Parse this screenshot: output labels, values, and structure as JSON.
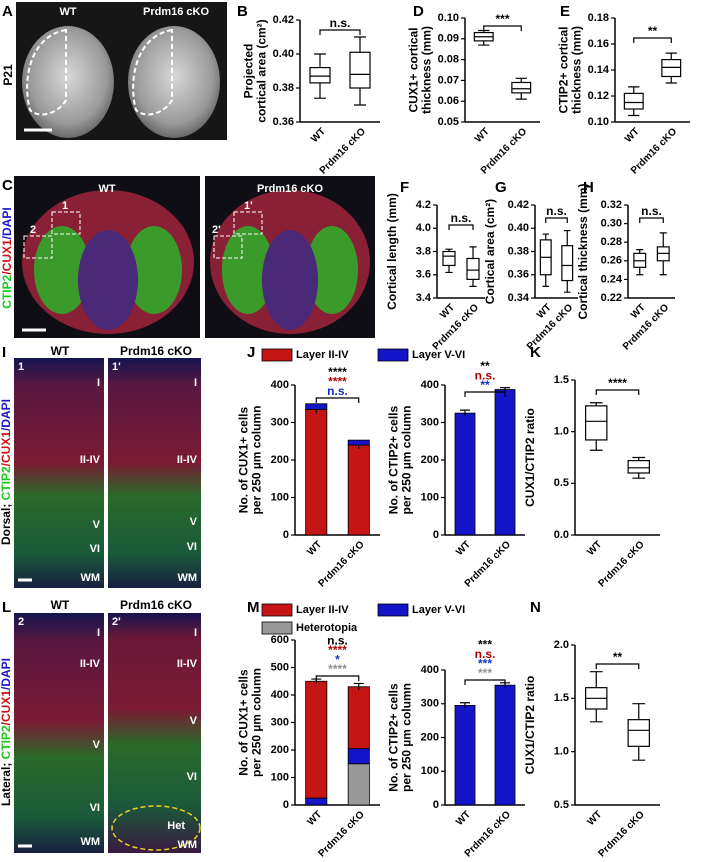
{
  "figure_panels": [
    {
      "label": "A",
      "titles": [
        "WT",
        "Prdm16 cKO"
      ],
      "side": "P21"
    },
    {
      "label": "C",
      "titles": [
        "WT",
        "Prdm16 cKO"
      ],
      "stain": [
        "CTIP2",
        "/CUX1",
        "/DAPI"
      ],
      "regions": [
        "1",
        "2",
        "1'",
        "2'"
      ]
    },
    {
      "label": "I",
      "titles": [
        "WT",
        "Prdm16 cKO"
      ],
      "region": "Dorsal; ",
      "stain": [
        "CTIP2",
        "/CUX1",
        "/DAPI"
      ],
      "columns": [
        {
          "id": "1",
          "layers": [
            "I",
            "II-IV",
            "V",
            "VI",
            "WM"
          ]
        },
        {
          "id": "1'",
          "layers": [
            "I",
            "II-IV",
            "V",
            "VI",
            "WM"
          ]
        }
      ]
    },
    {
      "label": "L",
      "titles": [
        "WT",
        "Prdm16 cKO"
      ],
      "region": "Lateral; ",
      "stain": [
        "CTIP2",
        "/CUX1",
        "/DAPI"
      ],
      "columns": [
        {
          "id": "2",
          "layers": [
            "I",
            "II-IV",
            "V",
            "VI",
            "WM"
          ]
        },
        {
          "id": "2'",
          "layers": [
            "I",
            "II-IV",
            "V",
            "VI",
            "Het",
            "WM"
          ]
        }
      ]
    }
  ],
  "chart_data": [
    {
      "type": "box",
      "label": "B",
      "ylabel": [
        "Projected",
        "cortical area (cm²)"
      ],
      "categories": [
        "WT",
        "Prdm16 cKO"
      ],
      "values": [
        {
          "min": 0.374,
          "q1": 0.383,
          "median": 0.387,
          "q3": 0.392,
          "max": 0.4
        },
        {
          "min": 0.37,
          "q1": 0.38,
          "median": 0.388,
          "q3": 0.401,
          "max": 0.41
        }
      ],
      "ylim": [
        0.36,
        0.42
      ],
      "yticks": [
        0.36,
        0.38,
        {
          "value": 0.4,
          "label": "0.40"
        },
        0.42
      ],
      "annotations": [
        {
          "text": "n.s.",
          "color": "#000000"
        }
      ]
    },
    {
      "type": "box",
      "label": "D",
      "ylabel": [
        "CUX1+ cortical",
        "thickness (mm)"
      ],
      "categories": [
        "WT",
        "Prdm16 cKO"
      ],
      "values": [
        {
          "min": 0.087,
          "q1": 0.089,
          "median": 0.091,
          "q3": 0.093,
          "max": 0.094
        },
        {
          "min": 0.061,
          "q1": 0.064,
          "median": 0.066,
          "q3": 0.069,
          "max": 0.071
        }
      ],
      "ylim": [
        0.05,
        0.1
      ],
      "yticks": [
        0.05,
        0.06,
        0.07,
        0.08,
        0.09,
        {
          "value": 0.1,
          "label": "0.10"
        }
      ],
      "annotations": [
        {
          "text": "***",
          "color": "#000000"
        }
      ]
    },
    {
      "type": "box",
      "label": "E",
      "ylabel": [
        "CTIP2+ cortical",
        "thickness (mm)"
      ],
      "categories": [
        "WT",
        "Prdm16 cKO"
      ],
      "values": [
        {
          "min": 0.105,
          "q1": 0.11,
          "median": 0.115,
          "q3": 0.122,
          "max": 0.127
        },
        {
          "min": 0.13,
          "q1": 0.135,
          "median": 0.142,
          "q3": 0.148,
          "max": 0.153
        }
      ],
      "ylim": [
        0.1,
        0.18
      ],
      "yticks": [
        {
          "value": 0.1,
          "label": "0.10"
        },
        0.12,
        0.14,
        0.16,
        0.18
      ],
      "annotations": [
        {
          "text": "**",
          "color": "#000000"
        }
      ]
    },
    {
      "type": "box",
      "label": "F",
      "ylabel": [
        "Cortical length (mm)"
      ],
      "categories": [
        "WT",
        "Prdm16 cKO"
      ],
      "values": [
        {
          "min": 3.62,
          "q1": 3.68,
          "median": 3.76,
          "q3": 3.8,
          "max": 3.82
        },
        {
          "min": 3.5,
          "q1": 3.56,
          "median": 3.64,
          "q3": 3.74,
          "max": 3.84
        }
      ],
      "ylim": [
        3.4,
        4.2
      ],
      "yticks": [
        3.4,
        3.6,
        3.8,
        {
          "value": 4,
          "label": "4.0"
        },
        4.2
      ],
      "annotations": [
        {
          "text": "n.s.",
          "color": "#000000"
        }
      ]
    },
    {
      "type": "box",
      "label": "G",
      "ylabel": [
        "Cortical area (cm²)"
      ],
      "categories": [
        "WT",
        "Prdm16 cKO"
      ],
      "values": [
        {
          "min": 0.35,
          "q1": 0.36,
          "median": 0.375,
          "q3": 0.39,
          "max": 0.395
        },
        {
          "min": 0.345,
          "q1": 0.355,
          "median": 0.368,
          "q3": 0.385,
          "max": 0.398
        }
      ],
      "ylim": [
        0.34,
        0.42
      ],
      "yticks": [
        0.34,
        0.36,
        0.38,
        {
          "value": 0.4,
          "label": "0.40"
        },
        0.42
      ],
      "annotations": [
        {
          "text": "n.s.",
          "color": "#000000"
        }
      ]
    },
    {
      "type": "box",
      "label": "H",
      "ylabel": [
        "Cortical thickness (mm)"
      ],
      "categories": [
        "WT",
        "Prdm16 cKO"
      ],
      "values": [
        {
          "min": 0.245,
          "q1": 0.253,
          "median": 0.26,
          "q3": 0.268,
          "max": 0.272
        },
        {
          "min": 0.245,
          "q1": 0.26,
          "median": 0.268,
          "q3": 0.275,
          "max": 0.29
        }
      ],
      "ylim": [
        0.22,
        0.32
      ],
      "yticks": [
        0.22,
        0.24,
        0.26,
        0.28,
        {
          "value": 0.3,
          "label": "0.30"
        },
        0.32
      ],
      "annotations": [
        {
          "text": "n.s.",
          "color": "#000000"
        }
      ]
    },
    {
      "type": "bar",
      "label": "J",
      "ylabel": [
        "No. of CUX1+ cells",
        "per 250 µm column"
      ],
      "categories": [
        "WT",
        "Prdm16 cKO"
      ],
      "series": [
        {
          "name": "Layer II-IV",
          "color": "#c41414",
          "values": [
            335,
            240
          ],
          "errors": [
            10,
            10
          ]
        },
        {
          "name": "Layer V-VI",
          "color": "#1414c8",
          "values": [
            15,
            13
          ]
        }
      ],
      "ylim": [
        0,
        400
      ],
      "yticks": [
        0,
        100,
        200,
        300,
        400
      ],
      "annotations": [
        {
          "text": "****",
          "color": "#000000"
        },
        {
          "text": "****",
          "color": "#b00000"
        },
        {
          "text": "n.s.",
          "color": "#1030c0"
        }
      ]
    },
    {
      "type": "bar",
      "ylabel": [
        "No. of CTIP2+ cells",
        "per 250 µm column"
      ],
      "categories": [
        "WT",
        "Prdm16 cKO"
      ],
      "series": [
        {
          "color": "#1414c8",
          "values": [
            325,
            388
          ],
          "errors": [
            8,
            5
          ]
        }
      ],
      "ylim": [
        0,
        400
      ],
      "yticks": [
        0,
        100,
        200,
        300,
        400
      ],
      "annotations": [
        {
          "text": "**",
          "color": "#000000"
        },
        {
          "text": "n.s.",
          "color": "#b00000"
        },
        {
          "text": "**",
          "color": "#1030c0"
        }
      ]
    },
    {
      "type": "box",
      "label": "K",
      "ylabel": [
        "CUX1/CTIP2 ratio"
      ],
      "categories": [
        "WT",
        "Prdm16 cKO"
      ],
      "values": [
        {
          "min": 0.82,
          "q1": 0.92,
          "median": 1.1,
          "q3": 1.25,
          "max": 1.28
        },
        {
          "min": 0.55,
          "q1": 0.6,
          "median": 0.65,
          "q3": 0.72,
          "max": 0.75
        }
      ],
      "ylim": [
        0,
        1.5
      ],
      "yticks": [
        {
          "value": 0,
          "label": "0.0"
        },
        0.5,
        {
          "value": 1,
          "label": "1.0"
        },
        1.5
      ],
      "annotations": [
        {
          "text": "****",
          "color": "#000000"
        }
      ]
    },
    {
      "type": "bar",
      "label": "M",
      "ylabel": [
        "No. of CUX1+ cells",
        "per 250 µm column"
      ],
      "categories": [
        "WT",
        "Prdm16 cKO"
      ],
      "series": [
        {
          "name": "Heterotopia",
          "color": "#999999",
          "values": [
            0,
            150
          ]
        },
        {
          "name": "Layer V-VI",
          "color": "#1414c8",
          "values": [
            25,
            55
          ]
        },
        {
          "name": "Layer II-IV",
          "color": "#c41414",
          "values": [
            425,
            225
          ],
          "errors": [
            8,
            12
          ]
        }
      ],
      "legend_order": [
        2,
        1,
        0
      ],
      "ylim": [
        0,
        600
      ],
      "yticks": [
        0,
        100,
        200,
        300,
        400,
        500,
        600
      ],
      "annotations": [
        {
          "text": "n.s.",
          "color": "#000000"
        },
        {
          "text": "****",
          "color": "#b00000"
        },
        {
          "text": "*",
          "color": "#1030c0"
        },
        {
          "text": "****",
          "color": "#909090"
        }
      ]
    },
    {
      "type": "bar",
      "ylabel": [
        "No. of CTIP2+ cells",
        "per 250 µm column"
      ],
      "categories": [
        "WT",
        "Prdm16 cKO"
      ],
      "series": [
        {
          "color": "#1414c8",
          "values": [
            295,
            355
          ],
          "errors": [
            8,
            7
          ]
        }
      ],
      "ylim": [
        0,
        400
      ],
      "yticks": [
        0,
        100,
        200,
        300,
        400
      ],
      "annotations": [
        {
          "text": "***",
          "color": "#000000"
        },
        {
          "text": "n.s.",
          "color": "#b00000"
        },
        {
          "text": "***",
          "color": "#1030c0"
        },
        {
          "text": "***",
          "color": "#909090"
        }
      ]
    },
    {
      "type": "box",
      "label": "N",
      "ylabel": [
        "CUX1/CTIP2 ratio"
      ],
      "categories": [
        "WT",
        "Prdm16 cKO"
      ],
      "values": [
        {
          "min": 1.28,
          "q1": 1.4,
          "median": 1.5,
          "q3": 1.6,
          "max": 1.75
        },
        {
          "min": 0.92,
          "q1": 1.05,
          "median": 1.2,
          "q3": 1.3,
          "max": 1.45
        }
      ],
      "ylim": [
        0.5,
        2
      ],
      "yticks": [
        0.5,
        {
          "value": 1,
          "label": "1.0"
        },
        1.5,
        {
          "value": 2,
          "label": "2.0"
        }
      ],
      "annotations": [
        {
          "text": "**",
          "color": "#000000"
        }
      ]
    }
  ]
}
